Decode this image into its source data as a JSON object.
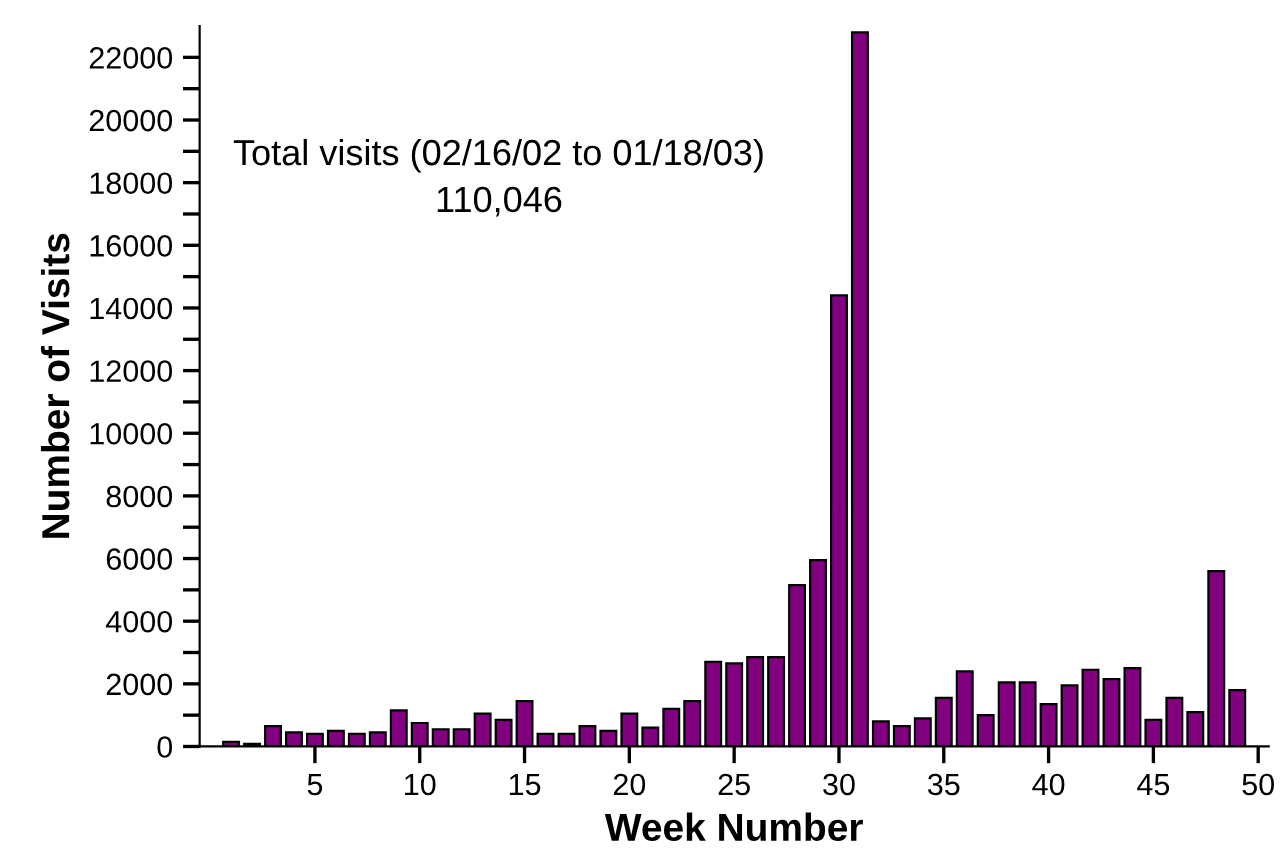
{
  "chart_data": {
    "type": "bar",
    "xlabel": "Week Number",
    "ylabel": "Number of Visits",
    "annotations": [
      "Total visits (02/16/02 to 01/18/03)",
      "110,046"
    ],
    "x": [
      1,
      2,
      3,
      4,
      5,
      6,
      7,
      8,
      9,
      10,
      11,
      12,
      13,
      14,
      15,
      16,
      17,
      18,
      19,
      20,
      21,
      22,
      23,
      24,
      25,
      26,
      27,
      28,
      29,
      30,
      31,
      32,
      33,
      34,
      35,
      36,
      37,
      38,
      39,
      40,
      41,
      42,
      43,
      44,
      45,
      46,
      47,
      48,
      49
    ],
    "values": [
      150,
      80,
      650,
      450,
      400,
      500,
      400,
      450,
      1150,
      750,
      550,
      550,
      1050,
      850,
      1450,
      400,
      400,
      650,
      500,
      1050,
      600,
      1200,
      1450,
      2700,
      2650,
      2850,
      2850,
      5150,
      5950,
      14400,
      22800,
      800,
      650,
      900,
      1550,
      2400,
      1000,
      2050,
      2050,
      1350,
      1950,
      2450,
      2150,
      2500,
      850,
      1550,
      1100,
      5600,
      1800
    ],
    "color": "#800080",
    "xlim": [
      -0.5,
      50.5
    ],
    "xticks": [
      5,
      10,
      15,
      20,
      25,
      30,
      35,
      40,
      45,
      50
    ],
    "ylim": [
      0,
      23000
    ],
    "yticks": [
      0,
      {
        "value": 1000,
        "label": null
      },
      2000,
      {
        "value": 3000,
        "label": null
      },
      4000,
      {
        "value": 5000,
        "label": null
      },
      6000,
      {
        "value": 7000,
        "label": null
      },
      8000,
      {
        "value": 9000,
        "label": null
      },
      10000,
      {
        "value": 11000,
        "label": null
      },
      12000,
      {
        "value": 13000,
        "label": null
      },
      14000,
      {
        "value": 15000,
        "label": null
      },
      16000,
      {
        "value": 17000,
        "label": null
      },
      18000,
      {
        "value": 19000,
        "label": null
      },
      20000,
      {
        "value": 21000,
        "label": null
      },
      22000
    ],
    "grid": false,
    "legend": false
  }
}
